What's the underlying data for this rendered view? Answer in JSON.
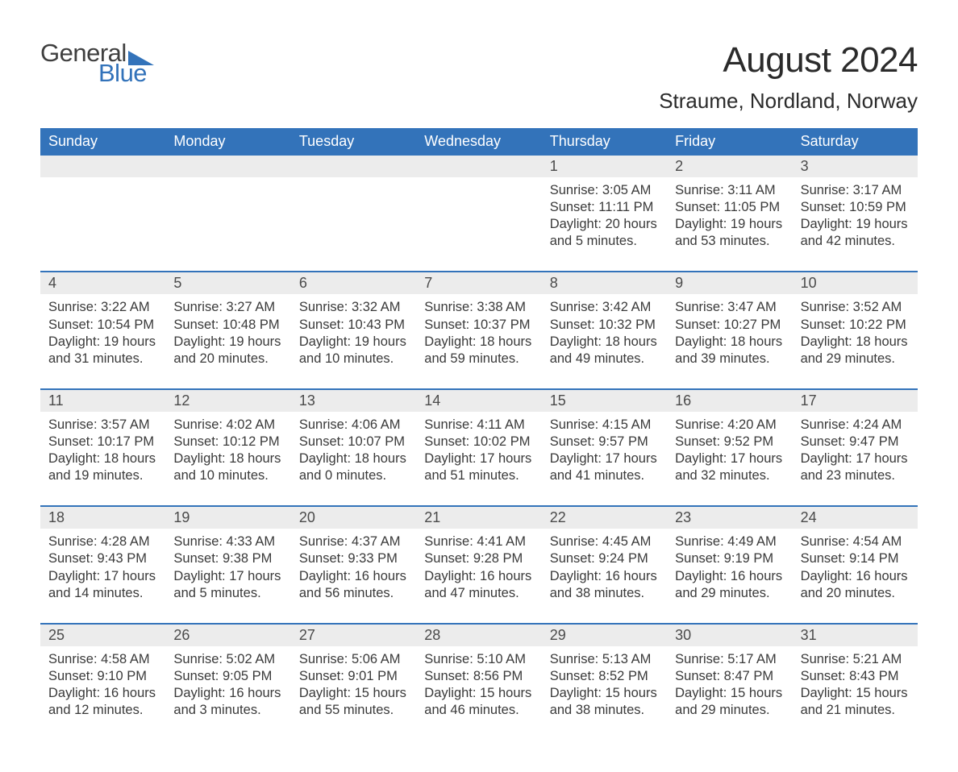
{
  "brand": {
    "word1": "General",
    "word2": "Blue",
    "accent_color": "#3373ba",
    "text_color": "#3f3f3f"
  },
  "title": "August 2024",
  "location": "Straume, Nordland, Norway",
  "colors": {
    "header_bg": "#3373ba",
    "header_text": "#ffffff",
    "daynum_bg": "#ececec",
    "body_text": "#3a3a3a",
    "page_bg": "#ffffff"
  },
  "day_headers": [
    "Sunday",
    "Monday",
    "Tuesday",
    "Wednesday",
    "Thursday",
    "Friday",
    "Saturday"
  ],
  "weeks": [
    [
      {
        "num": "",
        "sunrise": "",
        "sunset": "",
        "daylight1": "",
        "daylight2": ""
      },
      {
        "num": "",
        "sunrise": "",
        "sunset": "",
        "daylight1": "",
        "daylight2": ""
      },
      {
        "num": "",
        "sunrise": "",
        "sunset": "",
        "daylight1": "",
        "daylight2": ""
      },
      {
        "num": "",
        "sunrise": "",
        "sunset": "",
        "daylight1": "",
        "daylight2": ""
      },
      {
        "num": "1",
        "sunrise": "Sunrise: 3:05 AM",
        "sunset": "Sunset: 11:11 PM",
        "daylight1": "Daylight: 20 hours",
        "daylight2": "and 5 minutes."
      },
      {
        "num": "2",
        "sunrise": "Sunrise: 3:11 AM",
        "sunset": "Sunset: 11:05 PM",
        "daylight1": "Daylight: 19 hours",
        "daylight2": "and 53 minutes."
      },
      {
        "num": "3",
        "sunrise": "Sunrise: 3:17 AM",
        "sunset": "Sunset: 10:59 PM",
        "daylight1": "Daylight: 19 hours",
        "daylight2": "and 42 minutes."
      }
    ],
    [
      {
        "num": "4",
        "sunrise": "Sunrise: 3:22 AM",
        "sunset": "Sunset: 10:54 PM",
        "daylight1": "Daylight: 19 hours",
        "daylight2": "and 31 minutes."
      },
      {
        "num": "5",
        "sunrise": "Sunrise: 3:27 AM",
        "sunset": "Sunset: 10:48 PM",
        "daylight1": "Daylight: 19 hours",
        "daylight2": "and 20 minutes."
      },
      {
        "num": "6",
        "sunrise": "Sunrise: 3:32 AM",
        "sunset": "Sunset: 10:43 PM",
        "daylight1": "Daylight: 19 hours",
        "daylight2": "and 10 minutes."
      },
      {
        "num": "7",
        "sunrise": "Sunrise: 3:38 AM",
        "sunset": "Sunset: 10:37 PM",
        "daylight1": "Daylight: 18 hours",
        "daylight2": "and 59 minutes."
      },
      {
        "num": "8",
        "sunrise": "Sunrise: 3:42 AM",
        "sunset": "Sunset: 10:32 PM",
        "daylight1": "Daylight: 18 hours",
        "daylight2": "and 49 minutes."
      },
      {
        "num": "9",
        "sunrise": "Sunrise: 3:47 AM",
        "sunset": "Sunset: 10:27 PM",
        "daylight1": "Daylight: 18 hours",
        "daylight2": "and 39 minutes."
      },
      {
        "num": "10",
        "sunrise": "Sunrise: 3:52 AM",
        "sunset": "Sunset: 10:22 PM",
        "daylight1": "Daylight: 18 hours",
        "daylight2": "and 29 minutes."
      }
    ],
    [
      {
        "num": "11",
        "sunrise": "Sunrise: 3:57 AM",
        "sunset": "Sunset: 10:17 PM",
        "daylight1": "Daylight: 18 hours",
        "daylight2": "and 19 minutes."
      },
      {
        "num": "12",
        "sunrise": "Sunrise: 4:02 AM",
        "sunset": "Sunset: 10:12 PM",
        "daylight1": "Daylight: 18 hours",
        "daylight2": "and 10 minutes."
      },
      {
        "num": "13",
        "sunrise": "Sunrise: 4:06 AM",
        "sunset": "Sunset: 10:07 PM",
        "daylight1": "Daylight: 18 hours",
        "daylight2": "and 0 minutes."
      },
      {
        "num": "14",
        "sunrise": "Sunrise: 4:11 AM",
        "sunset": "Sunset: 10:02 PM",
        "daylight1": "Daylight: 17 hours",
        "daylight2": "and 51 minutes."
      },
      {
        "num": "15",
        "sunrise": "Sunrise: 4:15 AM",
        "sunset": "Sunset: 9:57 PM",
        "daylight1": "Daylight: 17 hours",
        "daylight2": "and 41 minutes."
      },
      {
        "num": "16",
        "sunrise": "Sunrise: 4:20 AM",
        "sunset": "Sunset: 9:52 PM",
        "daylight1": "Daylight: 17 hours",
        "daylight2": "and 32 minutes."
      },
      {
        "num": "17",
        "sunrise": "Sunrise: 4:24 AM",
        "sunset": "Sunset: 9:47 PM",
        "daylight1": "Daylight: 17 hours",
        "daylight2": "and 23 minutes."
      }
    ],
    [
      {
        "num": "18",
        "sunrise": "Sunrise: 4:28 AM",
        "sunset": "Sunset: 9:43 PM",
        "daylight1": "Daylight: 17 hours",
        "daylight2": "and 14 minutes."
      },
      {
        "num": "19",
        "sunrise": "Sunrise: 4:33 AM",
        "sunset": "Sunset: 9:38 PM",
        "daylight1": "Daylight: 17 hours",
        "daylight2": "and 5 minutes."
      },
      {
        "num": "20",
        "sunrise": "Sunrise: 4:37 AM",
        "sunset": "Sunset: 9:33 PM",
        "daylight1": "Daylight: 16 hours",
        "daylight2": "and 56 minutes."
      },
      {
        "num": "21",
        "sunrise": "Sunrise: 4:41 AM",
        "sunset": "Sunset: 9:28 PM",
        "daylight1": "Daylight: 16 hours",
        "daylight2": "and 47 minutes."
      },
      {
        "num": "22",
        "sunrise": "Sunrise: 4:45 AM",
        "sunset": "Sunset: 9:24 PM",
        "daylight1": "Daylight: 16 hours",
        "daylight2": "and 38 minutes."
      },
      {
        "num": "23",
        "sunrise": "Sunrise: 4:49 AM",
        "sunset": "Sunset: 9:19 PM",
        "daylight1": "Daylight: 16 hours",
        "daylight2": "and 29 minutes."
      },
      {
        "num": "24",
        "sunrise": "Sunrise: 4:54 AM",
        "sunset": "Sunset: 9:14 PM",
        "daylight1": "Daylight: 16 hours",
        "daylight2": "and 20 minutes."
      }
    ],
    [
      {
        "num": "25",
        "sunrise": "Sunrise: 4:58 AM",
        "sunset": "Sunset: 9:10 PM",
        "daylight1": "Daylight: 16 hours",
        "daylight2": "and 12 minutes."
      },
      {
        "num": "26",
        "sunrise": "Sunrise: 5:02 AM",
        "sunset": "Sunset: 9:05 PM",
        "daylight1": "Daylight: 16 hours",
        "daylight2": "and 3 minutes."
      },
      {
        "num": "27",
        "sunrise": "Sunrise: 5:06 AM",
        "sunset": "Sunset: 9:01 PM",
        "daylight1": "Daylight: 15 hours",
        "daylight2": "and 55 minutes."
      },
      {
        "num": "28",
        "sunrise": "Sunrise: 5:10 AM",
        "sunset": "Sunset: 8:56 PM",
        "daylight1": "Daylight: 15 hours",
        "daylight2": "and 46 minutes."
      },
      {
        "num": "29",
        "sunrise": "Sunrise: 5:13 AM",
        "sunset": "Sunset: 8:52 PM",
        "daylight1": "Daylight: 15 hours",
        "daylight2": "and 38 minutes."
      },
      {
        "num": "30",
        "sunrise": "Sunrise: 5:17 AM",
        "sunset": "Sunset: 8:47 PM",
        "daylight1": "Daylight: 15 hours",
        "daylight2": "and 29 minutes."
      },
      {
        "num": "31",
        "sunrise": "Sunrise: 5:21 AM",
        "sunset": "Sunset: 8:43 PM",
        "daylight1": "Daylight: 15 hours",
        "daylight2": "and 21 minutes."
      }
    ]
  ]
}
